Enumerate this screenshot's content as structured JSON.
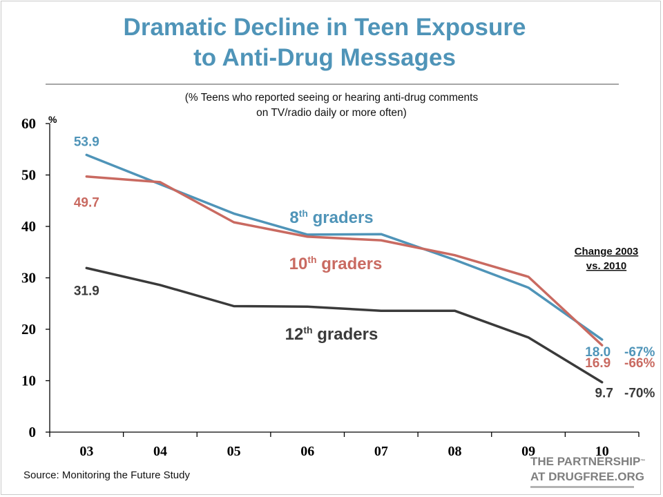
{
  "title_line1": "Dramatic Decline in Teen Exposure",
  "title_line2": "to Anti-Drug Messages",
  "subtitle_line1": "(% Teens who reported seeing or hearing anti-drug comments",
  "subtitle_line2": "on TV/radio daily or more often)",
  "source": "Source: Monitoring the Future Study",
  "logo": {
    "line1": "THE PARTNERSHIP",
    "tm": "™",
    "line2": "AT DRUGFREE.ORG"
  },
  "colors": {
    "title": "#4f94b8",
    "grade8": "#4f94b8",
    "grade10": "#c96a61",
    "grade12": "#3a3a3a"
  },
  "chart_data": {
    "type": "line",
    "title": "Dramatic Decline in Teen Exposure to Anti-Drug Messages",
    "subtitle": "(% Teens who reported seeing or hearing anti-drug comments on TV/radio daily or more often)",
    "ylabel": "%",
    "xlabel": "",
    "x": [
      "03",
      "04",
      "05",
      "06",
      "07",
      "08",
      "09",
      "10"
    ],
    "ylim": [
      0,
      60
    ],
    "yticks": [
      0,
      10,
      20,
      30,
      40,
      50,
      60
    ],
    "grid": false,
    "series": [
      {
        "key": "grade8",
        "name": "8th graders",
        "name_base": "8",
        "name_sup": "th",
        "name_rest": " graders",
        "color": "#4f94b8",
        "values": [
          53.9,
          48.2,
          42.5,
          38.4,
          38.5,
          33.5,
          28.1,
          18.0
        ],
        "start_label": "53.9",
        "end_label": "18.0",
        "change": "-67%"
      },
      {
        "key": "grade10",
        "name": "10th graders",
        "name_base": "10",
        "name_sup": "th",
        "name_rest": " graders",
        "color": "#c96a61",
        "values": [
          49.7,
          48.6,
          40.8,
          38.0,
          37.3,
          34.4,
          30.2,
          16.9
        ],
        "start_label": "49.7",
        "end_label": "16.9",
        "change": "-66%"
      },
      {
        "key": "grade12",
        "name": "12th graders",
        "name_base": "12",
        "name_sup": "th",
        "name_rest": " graders",
        "color": "#3a3a3a",
        "values": [
          31.9,
          28.6,
          24.5,
          24.4,
          23.6,
          23.6,
          18.4,
          9.7
        ],
        "start_label": "31.9",
        "end_label": "9.7",
        "change": "-70%"
      }
    ],
    "annotation": {
      "line1": "Change 2003",
      "line2": "vs. 2010"
    }
  }
}
